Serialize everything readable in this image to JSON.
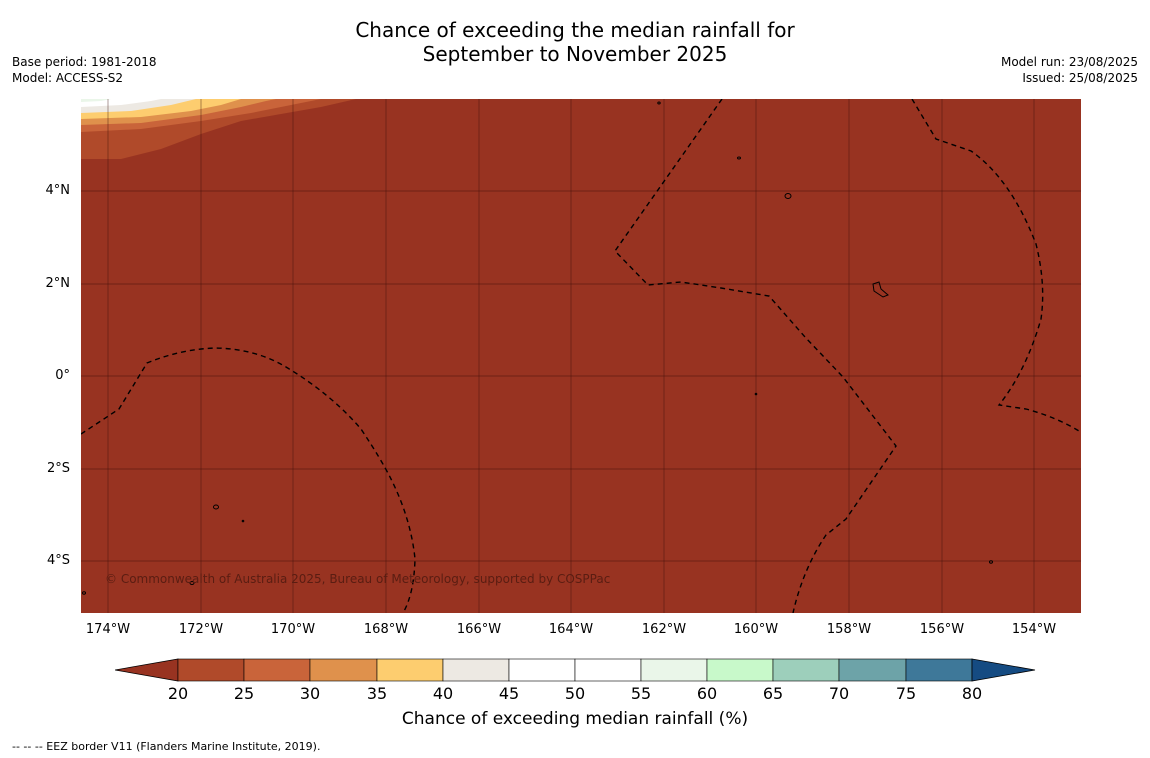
{
  "title": {
    "line1": "Chance of exceeding the median rainfall for",
    "line2": "September to November 2025"
  },
  "meta_left": {
    "base_period": "Base period: 1981-2018",
    "model": "Model: ACCESS-S2"
  },
  "meta_right": {
    "model_run": "Model run: 23/08/2025",
    "issued": "Issued: 25/08/2025"
  },
  "map": {
    "background_color": "#983321",
    "copyright": "© Commonwealth of Australia 2025, Bureau of Meteorology, supported by COSPPac",
    "lat_labels": [
      "4°N",
      "2°N",
      "0°",
      "2°S",
      "4°S"
    ],
    "lon_labels": [
      "174°W",
      "172°W",
      "170°W",
      "168°W",
      "166°W",
      "164°W",
      "162°W",
      "160°W",
      "158°W",
      "156°W",
      "154°W"
    ]
  },
  "colorbar": {
    "ticks": [
      "20",
      "25",
      "30",
      "35",
      "40",
      "45",
      "50",
      "55",
      "60",
      "65",
      "70",
      "75",
      "80"
    ],
    "colors": [
      "#983321",
      "#b04a2a",
      "#c9643a",
      "#df914c",
      "#fdcd6f",
      "#ede9e3",
      "#ffffff",
      "#ffffff",
      "#eaf6e9",
      "#c8f9ca",
      "#9dcfbb",
      "#6da3a8",
      "#3e7899",
      "#154b82"
    ],
    "label": "Chance of exceeding median rainfall (%)"
  },
  "footnote": "--  --  -- EEZ border V11 (Flanders Marine Institute, 2019)."
}
